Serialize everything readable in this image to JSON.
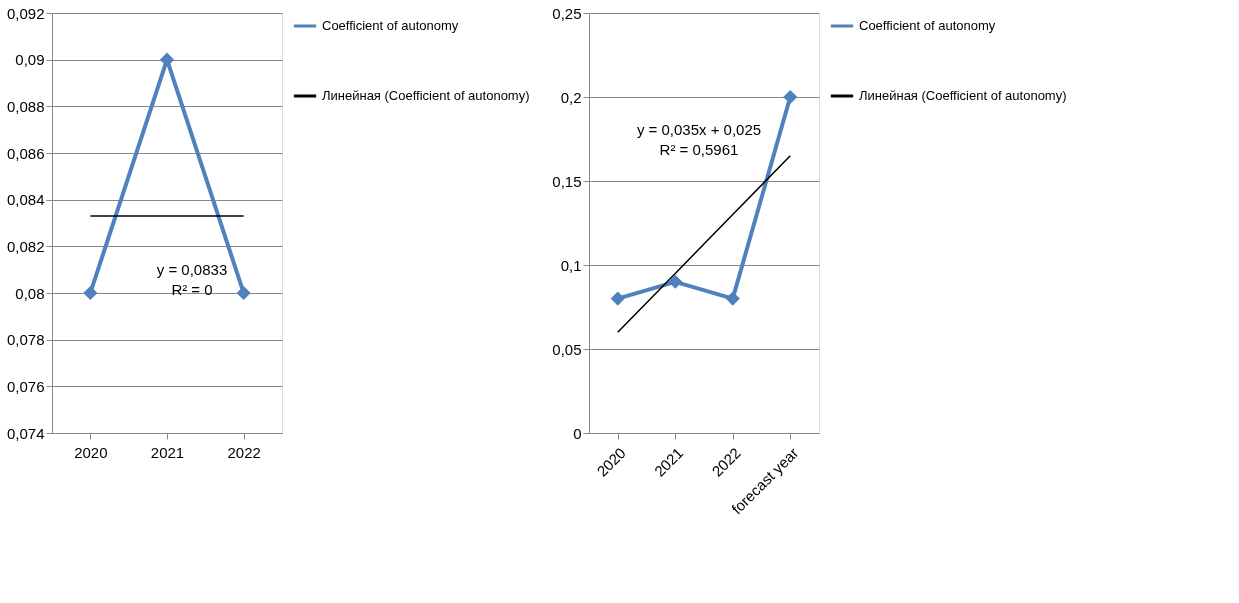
{
  "chart_data": [
    {
      "type": "line",
      "categories": [
        "2020",
        "2021",
        "2022"
      ],
      "series": [
        {
          "name": "Coefficient of autonomy",
          "color": "#4f81bd",
          "marker": "diamond",
          "values": [
            0.08,
            0.09,
            0.08
          ]
        },
        {
          "name": "Линейная (Coefficient of autonomy)",
          "type": "line",
          "color": "#000000",
          "marker": "none",
          "values": [
            0.0833,
            0.0833,
            0.0833
          ]
        }
      ],
      "ylim": [
        0.074,
        0.092
      ],
      "yticks": [
        {
          "value": 0.074,
          "label": "0,074"
        },
        {
          "value": 0.076,
          "label": "0,076"
        },
        {
          "value": 0.078,
          "label": "0,078"
        },
        {
          "value": 0.08,
          "label": "0,08"
        },
        {
          "value": 0.082,
          "label": "0,082"
        },
        {
          "value": 0.084,
          "label": "0,084"
        },
        {
          "value": 0.086,
          "label": "0,086"
        },
        {
          "value": 0.088,
          "label": "0,088"
        },
        {
          "value": 0.09,
          "label": "0,09"
        },
        {
          "value": 0.092,
          "label": "0,092"
        }
      ],
      "grid": "y",
      "legend": "right",
      "annotations": [
        "y = 0,0833\nR² = 0"
      ]
    },
    {
      "type": "line",
      "categories": [
        "2020",
        "2021",
        "2022",
        "forecast year"
      ],
      "series": [
        {
          "name": "Coefficient of autonomy",
          "color": "#4f81bd",
          "marker": "diamond",
          "values": [
            0.08,
            0.09,
            0.08,
            0.2
          ]
        },
        {
          "name": "Линейная (Coefficient of autonomy)",
          "type": "line",
          "color": "#000000",
          "marker": "none",
          "values": [
            0.06,
            0.095,
            0.13,
            0.165
          ]
        }
      ],
      "ylim": [
        0,
        0.25
      ],
      "yticks": [
        {
          "value": 0,
          "label": "0"
        },
        {
          "value": 0.05,
          "label": "0,05"
        },
        {
          "value": 0.1,
          "label": "0,1"
        },
        {
          "value": 0.15,
          "label": "0,15"
        },
        {
          "value": 0.2,
          "label": "0,2"
        },
        {
          "value": 0.25,
          "label": "0,25"
        }
      ],
      "grid": "y",
      "legend": "right",
      "annotations": [
        "y = 0,035x + 0,025\nR² = 0,5961"
      ]
    }
  ]
}
